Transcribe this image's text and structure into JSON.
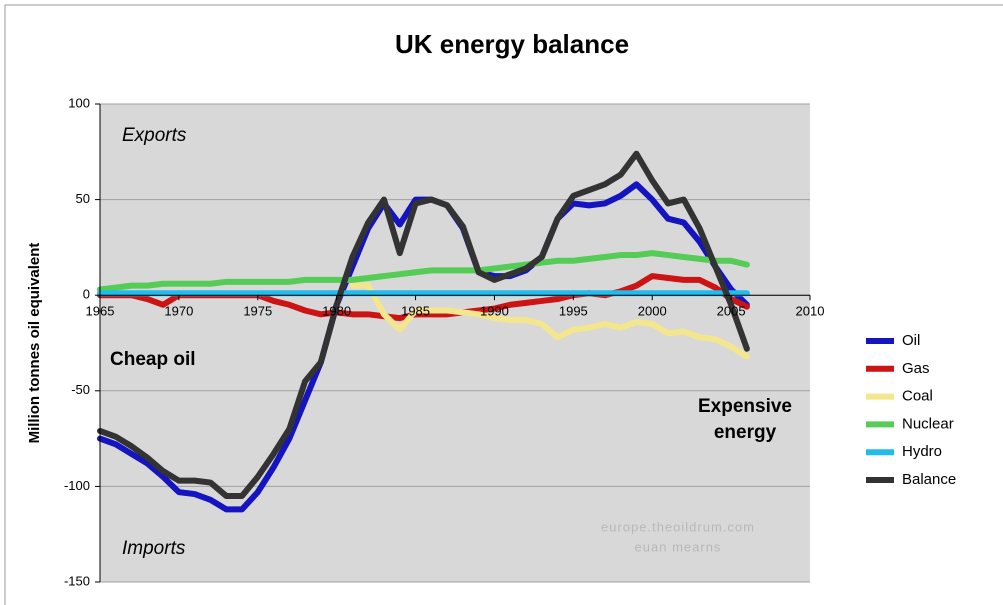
{
  "chart_data": {
    "type": "line",
    "title": "UK energy balance",
    "y_label": "Million tonnes oil equivalent",
    "annotations": [
      "Exports",
      "Imports",
      "Cheap oil",
      "Expensive",
      "energy",
      "europe.theoildrum.com",
      "euan mearns"
    ],
    "x": [
      1965,
      1966,
      1967,
      1968,
      1969,
      1970,
      1971,
      1972,
      1973,
      1974,
      1975,
      1976,
      1977,
      1978,
      1979,
      1980,
      1981,
      1982,
      1983,
      1984,
      1985,
      1986,
      1987,
      1988,
      1989,
      1990,
      1991,
      1992,
      1993,
      1994,
      1995,
      1996,
      1997,
      1998,
      1999,
      2000,
      2001,
      2002,
      2003,
      2004,
      2005,
      2006
    ],
    "series": [
      {
        "name": "Oil",
        "color": "#1414c0",
        "values": [
          -75,
          -78,
          -83,
          -88,
          -95,
          -103,
          -104,
          -107,
          -112,
          -112,
          -103,
          -90,
          -75,
          -55,
          -35,
          -5,
          15,
          35,
          48,
          37,
          50,
          50,
          47,
          35,
          12,
          10,
          10,
          13,
          20,
          40,
          48,
          47,
          48,
          52,
          58,
          50,
          40,
          38,
          28,
          15,
          3,
          -5
        ]
      },
      {
        "name": "Gas",
        "color": "#cc1414",
        "values": [
          0,
          0,
          0,
          -2,
          -5,
          0,
          0,
          0,
          0,
          0,
          0,
          -3,
          -5,
          -8,
          -10,
          -9,
          -10,
          -10,
          -11,
          -12,
          -10,
          -10,
          -10,
          -9,
          -8,
          -7,
          -5,
          -4,
          -3,
          -2,
          0,
          1,
          0,
          2,
          5,
          10,
          9,
          8,
          8,
          4,
          -2,
          -6
        ]
      },
      {
        "name": "Coal",
        "color": "#f3e68c",
        "values": [
          null,
          null,
          null,
          null,
          null,
          null,
          null,
          null,
          null,
          null,
          null,
          null,
          null,
          null,
          null,
          null,
          5,
          5,
          -10,
          -18,
          -8,
          -8,
          -8,
          -9,
          -10,
          -12,
          -13,
          -13,
          -15,
          -22,
          -18,
          -17,
          -15,
          -17,
          -14,
          -15,
          -20,
          -19,
          -22,
          -23,
          -27,
          -32
        ]
      },
      {
        "name": "Nuclear",
        "color": "#55cc55",
        "values": [
          3,
          4,
          5,
          5,
          6,
          6,
          6,
          6,
          7,
          7,
          7,
          7,
          7,
          8,
          8,
          8,
          8,
          9,
          10,
          11,
          12,
          13,
          13,
          13,
          13,
          14,
          15,
          16,
          17,
          18,
          18,
          19,
          20,
          21,
          21,
          22,
          21,
          20,
          19,
          18,
          18,
          16
        ]
      },
      {
        "name": "Hydro",
        "color": "#22bbee",
        "values": [
          1,
          1,
          1,
          1,
          1,
          1,
          1,
          1,
          1,
          1,
          1,
          1,
          1,
          1,
          1,
          1,
          1,
          1,
          1,
          1,
          1,
          1,
          1,
          1,
          1,
          1,
          1,
          1,
          1,
          1,
          1,
          1,
          1,
          1,
          1,
          1,
          1,
          1,
          1,
          1,
          1,
          1
        ]
      },
      {
        "name": "Balance",
        "color": "#333333",
        "values": [
          -71,
          -74,
          -79,
          -85,
          -92,
          -97,
          -97,
          -98,
          -105,
          -105,
          -95,
          -83,
          -70,
          -45,
          -35,
          -5,
          20,
          38,
          50,
          22,
          48,
          50,
          47,
          36,
          12,
          8,
          11,
          14,
          20,
          40,
          52,
          55,
          58,
          63,
          74,
          60,
          48,
          50,
          35,
          15,
          -5,
          -28
        ]
      }
    ],
    "xlim": [
      1965,
      2010
    ],
    "xticks": [
      1965,
      1970,
      1975,
      1980,
      1985,
      1990,
      1995,
      2000,
      2005,
      2010
    ],
    "ylim": [
      -150,
      100
    ],
    "yticks": [
      -150,
      -100,
      -50,
      0,
      50,
      100
    ],
    "grid": true,
    "legend": "right"
  }
}
